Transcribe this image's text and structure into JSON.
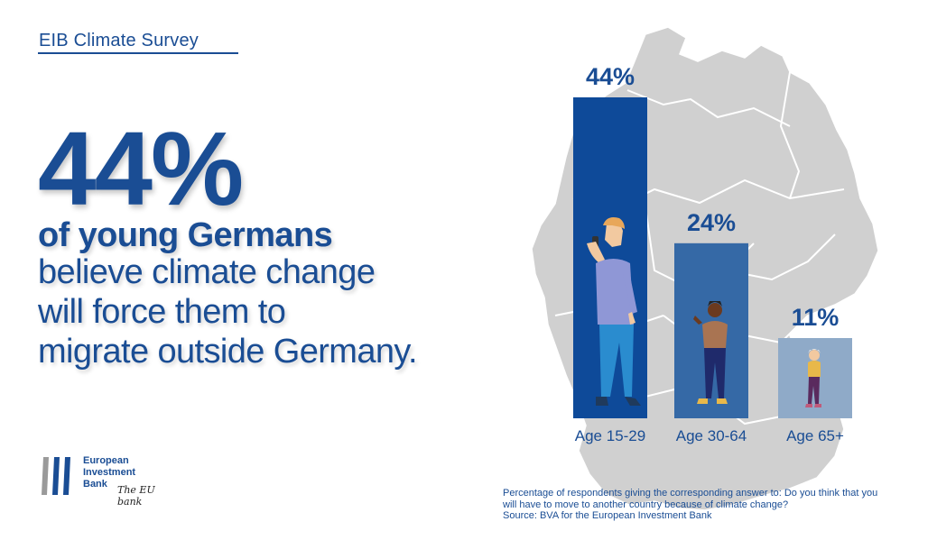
{
  "header": {
    "title": "EIB Climate Survey"
  },
  "headline": {
    "percent": "44%",
    "bold_line": "of young Germans",
    "lines": [
      "believe climate change",
      "will force them to",
      "migrate outside Germany."
    ]
  },
  "logo": {
    "lines": [
      "European",
      "Investment",
      "Bank"
    ],
    "signature": "The EU bank"
  },
  "footnote": {
    "line1": "Percentage of respondents  giving the corresponding answer to: Do you think that  you",
    "line2": "will have to move to another country because of climate change?",
    "line3": "Source: BVA for the European Investment Bank"
  },
  "colors": {
    "brand_blue": "#1a4d94",
    "bar_1": "#0e4a99",
    "bar_2": "#3569a6",
    "bar_3": "#8faac8",
    "map_grey": "#d0d0d0"
  },
  "chart_data": {
    "type": "bar",
    "title": "",
    "categories": [
      "Age 15-29",
      "Age 30-64",
      "Age 65+"
    ],
    "values": [
      44,
      24,
      11
    ],
    "value_labels": [
      "44%",
      "24%",
      "11%"
    ],
    "ylim": [
      0,
      44
    ],
    "xlabel": "",
    "ylabel": "",
    "grid": false
  }
}
